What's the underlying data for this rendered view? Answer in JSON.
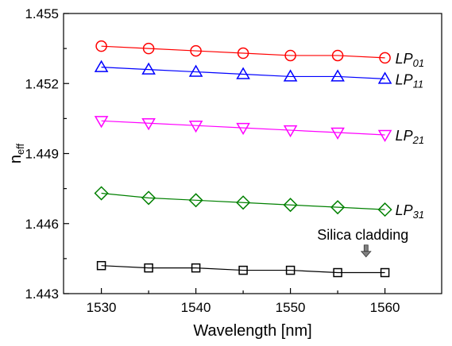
{
  "chart_data": {
    "type": "line",
    "title": "",
    "xlabel": "Wavelength [nm]",
    "ylabel": {
      "main": "n",
      "sub": "eff"
    },
    "x": [
      1530,
      1535,
      1540,
      1545,
      1550,
      1555,
      1560
    ],
    "xlim": [
      1526,
      1566
    ],
    "ylim": [
      1.443,
      1.455
    ],
    "xticks": [
      1530,
      1540,
      1550,
      1560
    ],
    "yticks": [
      1.443,
      1.446,
      1.449,
      1.452,
      1.455
    ],
    "xtick_labels": [
      "1530",
      "1540",
      "1550",
      "1560"
    ],
    "ytick_labels": [
      "1.443",
      "1.446",
      "1.449",
      "1.452",
      "1.455"
    ],
    "grid": false,
    "legend": "inline labels at right end of each series",
    "series": [
      {
        "name": {
          "main": "LP",
          "sub": "01"
        },
        "color": "#ff0000",
        "marker": "circle",
        "values": [
          1.4536,
          1.4535,
          1.4534,
          1.4533,
          1.4532,
          1.4532,
          1.4531
        ]
      },
      {
        "name": {
          "main": "LP",
          "sub": "11"
        },
        "color": "#0000ff",
        "marker": "triangle-up",
        "values": [
          1.4527,
          1.4526,
          1.4525,
          1.4524,
          1.4523,
          1.4523,
          1.4522
        ]
      },
      {
        "name": {
          "main": "LP",
          "sub": "21"
        },
        "color": "#ff00ff",
        "marker": "triangle-down",
        "values": [
          1.4504,
          1.4503,
          1.4502,
          1.4501,
          1.45,
          1.4499,
          1.4498
        ]
      },
      {
        "name": {
          "main": "LP",
          "sub": "31"
        },
        "color": "#008000",
        "marker": "diamond",
        "values": [
          1.4473,
          1.4471,
          1.447,
          1.4469,
          1.4468,
          1.4467,
          1.4466
        ]
      },
      {
        "name": "",
        "color": "#000000",
        "marker": "square",
        "values": [
          1.4442,
          1.4441,
          1.4441,
          1.444,
          1.444,
          1.4439,
          1.4439
        ]
      }
    ],
    "annotations": [
      {
        "text": "Silica cladding",
        "arrow": "down",
        "arrow_color": "#808080",
        "x": 1558,
        "y": 1.4443
      }
    ]
  }
}
